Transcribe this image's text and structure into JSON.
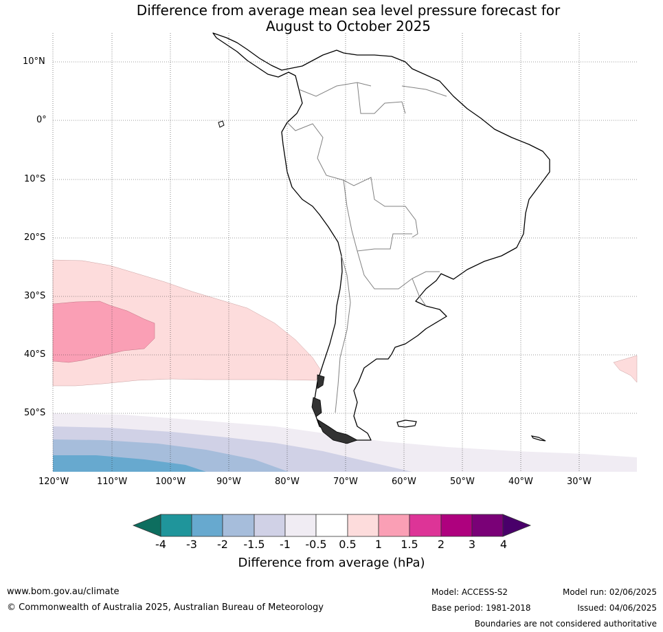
{
  "title_line1": "Difference from average mean sea level pressure forecast for",
  "title_line2": "August to October 2025",
  "lat_labels": [
    "10°N",
    "0°",
    "10°S",
    "20°S",
    "30°S",
    "40°S",
    "50°S"
  ],
  "lon_labels": [
    "120°W",
    "110°W",
    "100°W",
    "90°W",
    "80°W",
    "70°W",
    "60°W",
    "50°W",
    "40°W",
    "30°W"
  ],
  "colorbar": {
    "ticks": [
      "-4",
      "-3",
      "-2",
      "-1.5",
      "-1",
      "-0.5",
      "0.5",
      "1",
      "1.5",
      "2",
      "3",
      "4"
    ],
    "colors": [
      "#0d6e5f",
      "#1f959b",
      "#67a9cf",
      "#a6bddb",
      "#d0d1e6",
      "#f0ecf3",
      "#ffffff",
      "#fddcdc",
      "#fa9fb5",
      "#dd3497",
      "#ae017e",
      "#7a0177",
      "#49006a"
    ],
    "label": "Difference from average (hPa)"
  },
  "footer": {
    "website": "www.bom.gov.au/climate",
    "copyright": "© Commonwealth of Australia 2025, Australian Bureau of Meteorology",
    "model": "Model: ACCESS-S2",
    "base_period": "Base period: 1981-2018",
    "model_run": "Model run: 02/06/2025",
    "issued": "Issued: 04/06/2025",
    "disclaimer": "Boundaries are not considered authoritative"
  }
}
